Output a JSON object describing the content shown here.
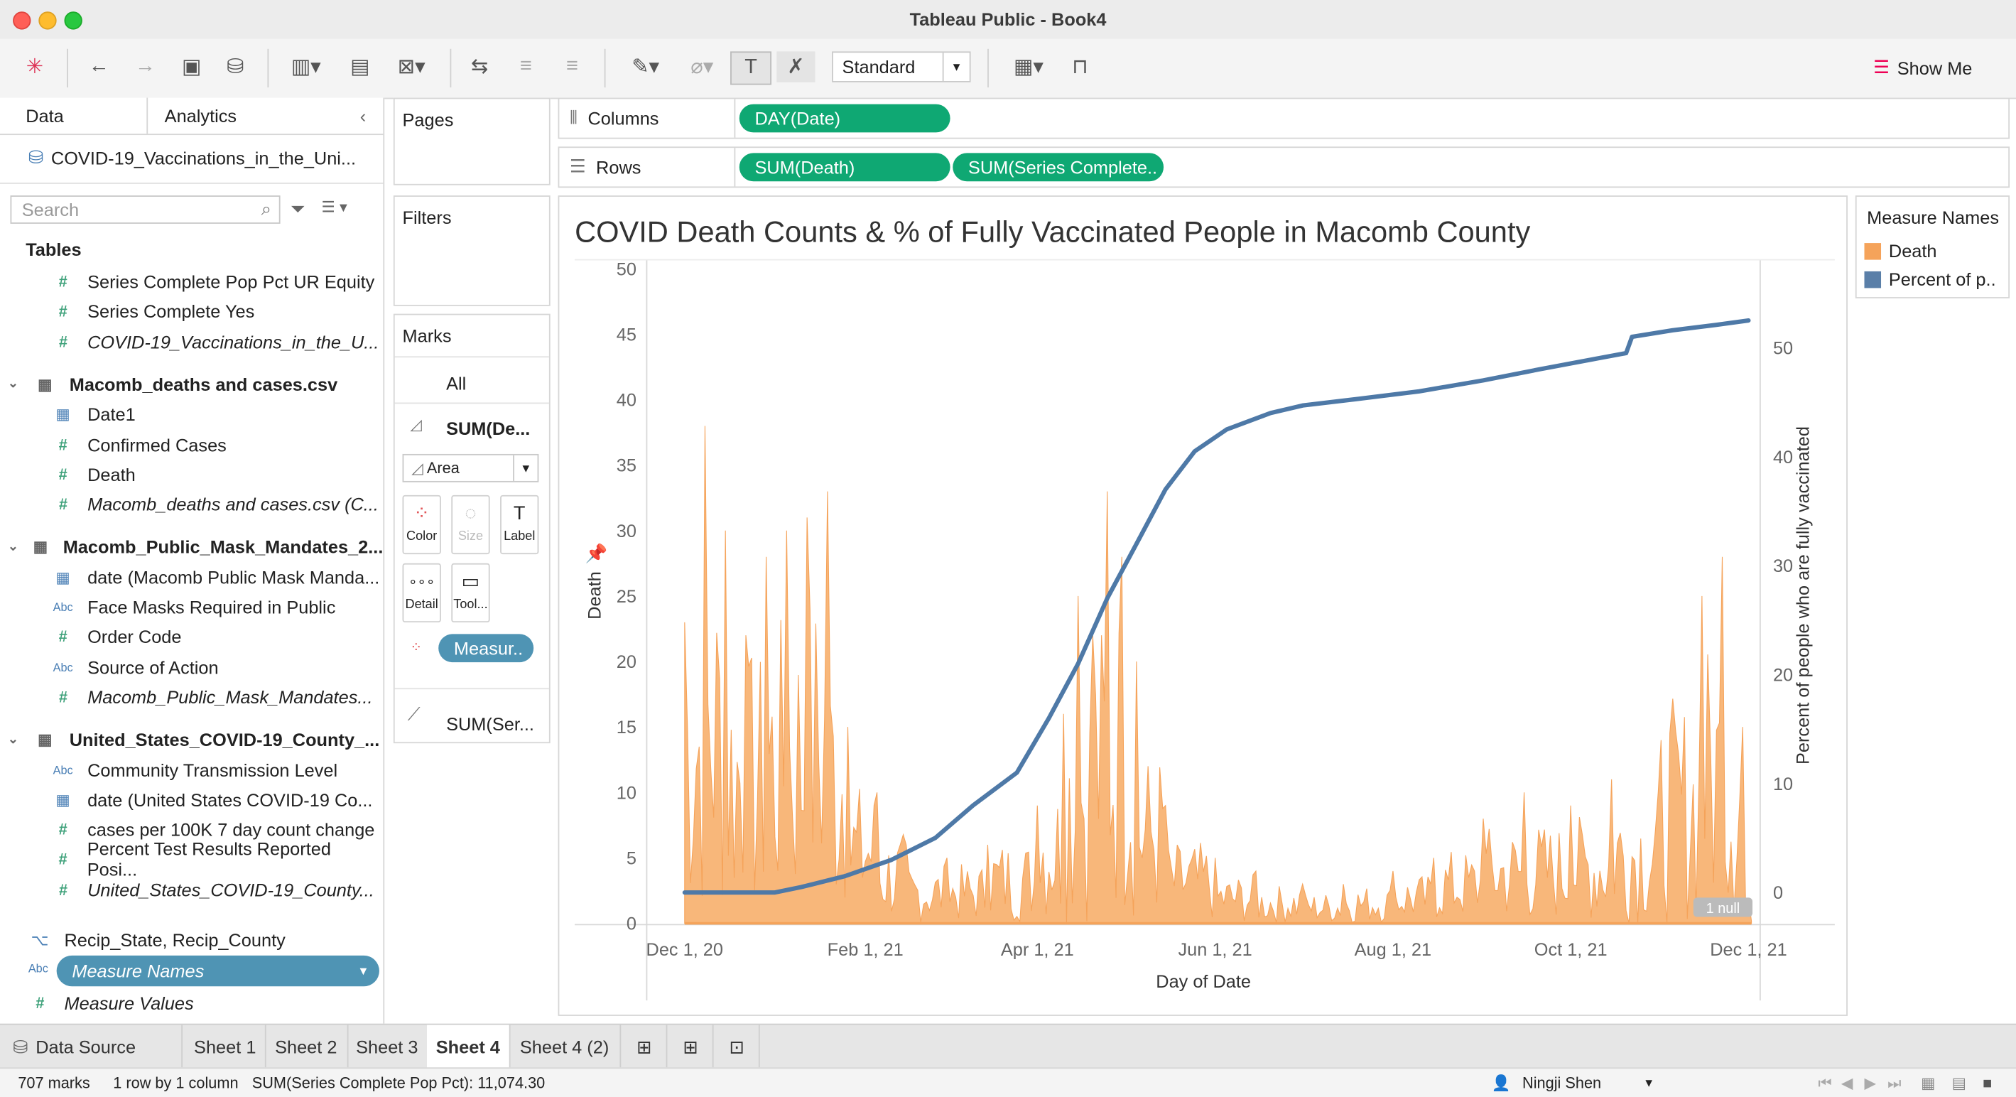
{
  "window": {
    "title": "Tableau Public - Book4"
  },
  "toolbar": {
    "standard": "Standard",
    "show_me": "Show Me"
  },
  "left_panel": {
    "tabs": [
      "Data",
      "Analytics"
    ],
    "data_source": "COVID-19_Vaccinations_in_the_Uni...",
    "search_placeholder": "Search",
    "tables_header": "Tables",
    "fields": [
      {
        "label": "Series Complete Pop Pct UR Equity",
        "type": "num"
      },
      {
        "label": "Series Complete Yes",
        "type": "num"
      },
      {
        "label": "COVID-19_Vaccinations_in_the_U...",
        "type": "num",
        "italic": true
      },
      {
        "label": "Macomb_deaths and cases.csv",
        "type": "table"
      },
      {
        "label": "Date1",
        "type": "cal"
      },
      {
        "label": "Confirmed Cases",
        "type": "num"
      },
      {
        "label": "Death",
        "type": "num"
      },
      {
        "label": "Macomb_deaths and cases.csv (C...",
        "type": "num",
        "italic": true
      },
      {
        "label": "Macomb_Public_Mask_Mandates_2...",
        "type": "table"
      },
      {
        "label": "date (Macomb Public Mask Manda...",
        "type": "cal"
      },
      {
        "label": "Face Masks Required in Public",
        "type": "abc"
      },
      {
        "label": "Order Code",
        "type": "num"
      },
      {
        "label": "Source of Action",
        "type": "abc"
      },
      {
        "label": "Macomb_Public_Mask_Mandates...",
        "type": "num",
        "italic": true
      },
      {
        "label": "United_States_COVID-19_County_...",
        "type": "table"
      },
      {
        "label": "Community Transmission Level",
        "type": "abc"
      },
      {
        "label": "date (United States COVID-19 Co...",
        "type": "cal"
      },
      {
        "label": "cases per 100K 7 day count change",
        "type": "num"
      },
      {
        "label": "Percent Test Results Reported Posi...",
        "type": "num"
      },
      {
        "label": "United_States_COVID-19_County...",
        "type": "num",
        "italic": true
      }
    ],
    "hierarchy": "Recip_State, Recip_County",
    "measure_names": "Measure Names",
    "measure_values": "Measure Values"
  },
  "shelves": {
    "pages": "Pages",
    "filters": "Filters",
    "marks": "Marks",
    "marks_all": "All",
    "marks_sum_death": "SUM(De...",
    "marks_type": "Area",
    "marks_buttons": [
      "Color",
      "Size",
      "Label",
      "Detail",
      "Tool..."
    ],
    "marks_measure_pill": "Measur..",
    "marks_sum_ser": "SUM(Ser...",
    "columns_label": "Columns",
    "columns_pill": "DAY(Date)",
    "rows_label": "Rows",
    "rows_pills": [
      "SUM(Death)",
      "SUM(Series Complete.."
    ]
  },
  "legend": {
    "title": "Measure Names",
    "items": [
      {
        "label": "Death",
        "color": "#f5a35a"
      },
      {
        "label": "Percent of p..",
        "color": "#5a7fa8"
      }
    ]
  },
  "chart_data": {
    "type": "area",
    "title": "COVID Death Counts & % of Fully Vaccinated People in Macomb County",
    "xlabel": "Day of Date",
    "ylabel": "Death",
    "y2label": "Percent of people who are fully vaccinated",
    "xticks": [
      "Dec 1, 20",
      "Feb 1, 21",
      "Apr 1, 21",
      "Jun 1, 21",
      "Aug 1, 21",
      "Oct 1, 21",
      "Dec 1, 21"
    ],
    "ylim": [
      0,
      50
    ],
    "yticks": [
      0,
      5,
      10,
      15,
      20,
      25,
      30,
      35,
      40,
      45,
      50
    ],
    "y2lim": [
      0,
      55
    ],
    "y2ticks": [
      0,
      10,
      20,
      30,
      40,
      50
    ],
    "null_badge": "1 null",
    "series": [
      {
        "name": "Death",
        "color": "#f5a35a",
        "note_peaks": [
          [
            "2020-12-01",
            23
          ],
          [
            "2020-12-08",
            38
          ],
          [
            "2020-12-15",
            30
          ],
          [
            "2020-12-22",
            22
          ],
          [
            "2020-12-29",
            28
          ],
          [
            "2021-01-05",
            30
          ],
          [
            "2021-01-12",
            31
          ],
          [
            "2021-01-19",
            33
          ],
          [
            "2021-01-26",
            15
          ],
          [
            "2021-02-05",
            10
          ],
          [
            "2021-02-15",
            6
          ],
          [
            "2021-03-01",
            5
          ],
          [
            "2021-03-15",
            6
          ],
          [
            "2021-04-01",
            9
          ],
          [
            "2021-04-10",
            16
          ],
          [
            "2021-04-15",
            25
          ],
          [
            "2021-04-20",
            22
          ],
          [
            "2021-04-25",
            33
          ],
          [
            "2021-04-30",
            28
          ],
          [
            "2021-05-05",
            20
          ],
          [
            "2021-05-15",
            9
          ],
          [
            "2021-06-01",
            5
          ],
          [
            "2021-06-15",
            4
          ],
          [
            "2021-07-01",
            3
          ],
          [
            "2021-07-15",
            3
          ],
          [
            "2021-08-01",
            4
          ],
          [
            "2021-08-15",
            5
          ],
          [
            "2021-09-01",
            8
          ],
          [
            "2021-09-15",
            10
          ],
          [
            "2021-10-01",
            9
          ],
          [
            "2021-10-15",
            11
          ],
          [
            "2021-11-01",
            14
          ],
          [
            "2021-11-15",
            25
          ],
          [
            "2021-11-22",
            28
          ],
          [
            "2021-11-29",
            15
          ]
        ]
      },
      {
        "name": "Percent of people who are fully vaccinated",
        "color": "#4e79a7",
        "points": [
          [
            "2020-12-01",
            0
          ],
          [
            "2020-12-20",
            0
          ],
          [
            "2021-01-01",
            0
          ],
          [
            "2021-01-10",
            0.5
          ],
          [
            "2021-01-25",
            1.5
          ],
          [
            "2021-02-10",
            3
          ],
          [
            "2021-02-25",
            5
          ],
          [
            "2021-03-10",
            8
          ],
          [
            "2021-03-25",
            11
          ],
          [
            "2021-04-05",
            16
          ],
          [
            "2021-04-15",
            21
          ],
          [
            "2021-04-25",
            27
          ],
          [
            "2021-05-05",
            32
          ],
          [
            "2021-05-15",
            37
          ],
          [
            "2021-05-25",
            40.5
          ],
          [
            "2021-06-05",
            42.5
          ],
          [
            "2021-06-20",
            44
          ],
          [
            "2021-07-01",
            44.7
          ],
          [
            "2021-07-20",
            45.3
          ],
          [
            "2021-08-10",
            46
          ],
          [
            "2021-09-01",
            47
          ],
          [
            "2021-09-20",
            48
          ],
          [
            "2021-10-10",
            49
          ],
          [
            "2021-10-20",
            49.5
          ],
          [
            "2021-10-22",
            51
          ],
          [
            "2021-11-05",
            51.6
          ],
          [
            "2021-11-20",
            52.1
          ],
          [
            "2021-12-01",
            52.5
          ]
        ]
      }
    ]
  },
  "sheets": {
    "data_source": "Data Source",
    "tabs": [
      "Sheet 1",
      "Sheet 2",
      "Sheet 3",
      "Sheet 4",
      "Sheet 4 (2)"
    ],
    "active": "Sheet 4"
  },
  "status": {
    "marks": "707 marks",
    "dims": "1 row by 1 column",
    "sum": "SUM(Series Complete Pop Pct): 11,074.30",
    "user": "Ningji Shen"
  }
}
